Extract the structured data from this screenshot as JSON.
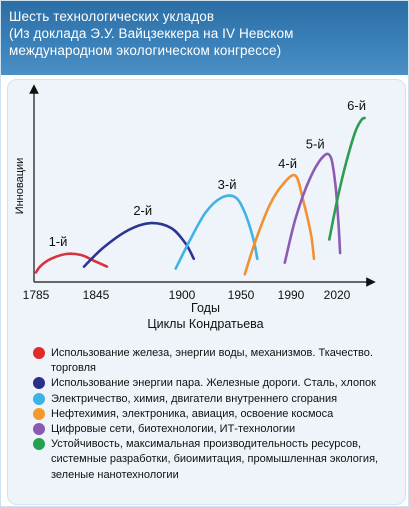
{
  "header": {
    "line1": "Шесть технологических укладов",
    "line2": "(Из доклада Э.У. Вайцзеккера на IV Невском",
    "line3": "международном экологическом конгрессе)"
  },
  "chart_data": {
    "type": "line",
    "ylabel": "Инновации",
    "xlabel": "Годы",
    "xlabel2": "Циклы Кондратьева",
    "x_ticks": [
      1785,
      1845,
      1900,
      1950,
      1990,
      2020
    ],
    "series": [
      {
        "name": "1-й",
        "color": "#d9323e",
        "points": [
          [
            1785,
            0.05
          ],
          [
            1790,
            0.085
          ],
          [
            1800,
            0.12
          ],
          [
            1815,
            0.145
          ],
          [
            1830,
            0.14
          ],
          [
            1843,
            0.11
          ],
          [
            1852,
            0.08
          ]
        ]
      },
      {
        "name": "2-й",
        "color": "#2d3590",
        "points": [
          [
            1833,
            0.08
          ],
          [
            1850,
            0.18
          ],
          [
            1866,
            0.27
          ],
          [
            1880,
            0.305
          ],
          [
            1893,
            0.28
          ],
          [
            1903,
            0.2
          ],
          [
            1910,
            0.12
          ]
        ]
      },
      {
        "name": "3-й",
        "color": "#3fb3e6",
        "points": [
          [
            1896,
            0.07
          ],
          [
            1907,
            0.22
          ],
          [
            1920,
            0.36
          ],
          [
            1933,
            0.435
          ],
          [
            1945,
            0.44
          ],
          [
            1953,
            0.36
          ],
          [
            1960,
            0.22
          ],
          [
            1963,
            0.12
          ]
        ]
      },
      {
        "name": "4-й",
        "color": "#f19132",
        "points": [
          [
            1953,
            0.04
          ],
          [
            1962,
            0.22
          ],
          [
            1973,
            0.4
          ],
          [
            1984,
            0.51
          ],
          [
            1993,
            0.55
          ],
          [
            1998,
            0.42
          ],
          [
            2003,
            0.25
          ],
          [
            2005,
            0.12
          ]
        ]
      },
      {
        "name": "5-й",
        "color": "#8d5bb5",
        "points": [
          [
            1985,
            0.1
          ],
          [
            1993,
            0.33
          ],
          [
            2002,
            0.53
          ],
          [
            2011,
            0.65
          ],
          [
            2016,
            0.645
          ],
          [
            2019,
            0.5
          ],
          [
            2021,
            0.3
          ],
          [
            2022,
            0.15
          ]
        ]
      },
      {
        "name": "6-й",
        "color": "#2e9c55",
        "points": [
          [
            2015,
            0.22
          ],
          [
            2020,
            0.42
          ],
          [
            2026,
            0.62
          ],
          [
            2032,
            0.78
          ],
          [
            2036,
            0.84
          ],
          [
            2038,
            0.85
          ]
        ]
      }
    ]
  },
  "legend": [
    {
      "color": "#e02b2b",
      "text": "Использование железа, энергии воды, механизмов. Ткачество. торговля"
    },
    {
      "color": "#2a2f88",
      "text": "Использование энергии пара. Железные дороги. Сталь, хлопок"
    },
    {
      "color": "#3ab3e7",
      "text": "Электричество, химия, двигатели внутреннего сгорания"
    },
    {
      "color": "#f39a2c",
      "text": "Нефтехимия, электроника, авиация, освоение космоса"
    },
    {
      "color": "#8b58b3",
      "text": "Цифровые сети, биотехнологии, ИТ-технологии"
    },
    {
      "color": "#26a24e",
      "text": "Устойчивость, максимальная производительность ресурсов, системные разработки, биоимитация, промышленная экология, зеленые нанотехнологии"
    }
  ]
}
